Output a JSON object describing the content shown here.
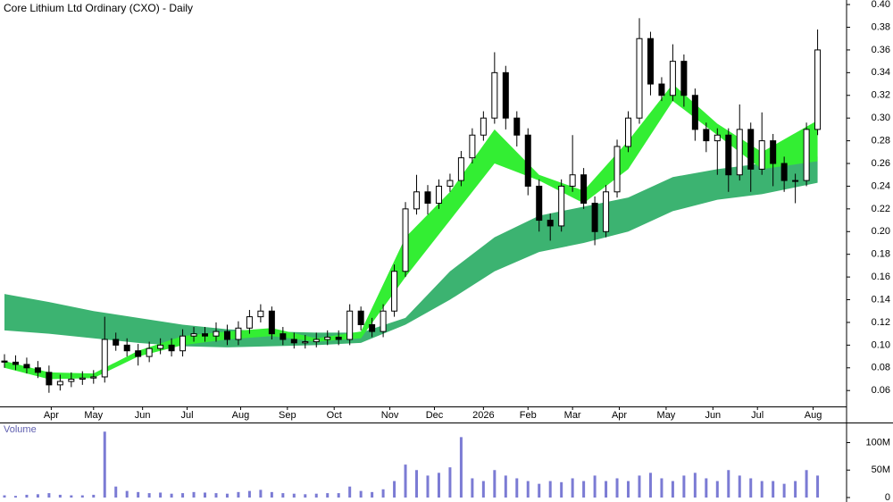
{
  "chart_data": {
    "type": "candlestick",
    "title": "Core Lithium Ltd Ordinary (CXO) - Daily",
    "x": [
      2,
      7,
      12,
      17,
      22,
      27,
      32,
      37,
      42,
      47,
      52,
      57,
      62,
      67,
      72,
      77,
      82,
      87,
      92,
      97,
      102,
      107,
      112,
      117,
      122,
      127,
      132,
      137,
      142,
      147,
      152,
      157,
      162,
      167,
      172,
      177,
      182,
      187,
      192,
      197,
      202,
      207,
      212,
      217,
      222,
      227,
      232,
      237,
      242,
      247,
      252,
      257,
      262,
      267,
      272,
      277,
      282,
      287,
      292,
      297,
      302,
      307,
      312,
      317,
      322,
      327,
      332,
      337,
      342,
      347,
      352,
      357,
      362,
      367
    ],
    "open": [
      0.086,
      0.085,
      0.083,
      0.08,
      0.076,
      0.065,
      0.068,
      0.07,
      0.071,
      0.072,
      0.105,
      0.1,
      0.095,
      0.09,
      0.097,
      0.1,
      0.095,
      0.108,
      0.11,
      0.108,
      0.112,
      0.105,
      0.115,
      0.125,
      0.13,
      0.11,
      0.105,
      0.102,
      0.103,
      0.105,
      0.107,
      0.105,
      0.13,
      0.118,
      0.112,
      0.13,
      0.165,
      0.22,
      0.235,
      0.225,
      0.24,
      0.245,
      0.265,
      0.285,
      0.3,
      0.34,
      0.3,
      0.285,
      0.24,
      0.21,
      0.205,
      0.24,
      0.25,
      0.225,
      0.2,
      0.235,
      0.275,
      0.3,
      0.37,
      0.33,
      0.32,
      0.35,
      0.32,
      0.29,
      0.28,
      0.285,
      0.25,
      0.29,
      0.255,
      0.28,
      0.26,
      0.245,
      0.245,
      0.29
    ],
    "high": [
      0.092,
      0.091,
      0.089,
      0.086,
      0.082,
      0.074,
      0.076,
      0.077,
      0.078,
      0.125,
      0.111,
      0.106,
      0.101,
      0.103,
      0.106,
      0.106,
      0.114,
      0.116,
      0.116,
      0.12,
      0.118,
      0.121,
      0.131,
      0.136,
      0.134,
      0.116,
      0.111,
      0.109,
      0.111,
      0.113,
      0.113,
      0.136,
      0.134,
      0.124,
      0.136,
      0.171,
      0.226,
      0.25,
      0.241,
      0.246,
      0.251,
      0.271,
      0.291,
      0.306,
      0.358,
      0.346,
      0.306,
      0.291,
      0.246,
      0.216,
      0.246,
      0.285,
      0.256,
      0.231,
      0.241,
      0.281,
      0.306,
      0.388,
      0.376,
      0.336,
      0.365,
      0.356,
      0.326,
      0.296,
      0.291,
      0.291,
      0.312,
      0.296,
      0.305,
      0.286,
      0.266,
      0.251,
      0.296,
      0.378
    ],
    "low": [
      0.08,
      0.078,
      0.075,
      0.071,
      0.058,
      0.06,
      0.063,
      0.065,
      0.066,
      0.067,
      0.095,
      0.09,
      0.082,
      0.085,
      0.092,
      0.09,
      0.09,
      0.103,
      0.103,
      0.103,
      0.1,
      0.1,
      0.11,
      0.12,
      0.105,
      0.1,
      0.097,
      0.097,
      0.098,
      0.1,
      0.1,
      0.1,
      0.113,
      0.107,
      0.107,
      0.125,
      0.16,
      0.215,
      0.215,
      0.22,
      0.235,
      0.24,
      0.26,
      0.28,
      0.295,
      0.29,
      0.275,
      0.232,
      0.2,
      0.192,
      0.2,
      0.235,
      0.22,
      0.188,
      0.195,
      0.23,
      0.27,
      0.295,
      0.32,
      0.315,
      0.315,
      0.31,
      0.28,
      0.27,
      0.25,
      0.235,
      0.245,
      0.235,
      0.25,
      0.24,
      0.235,
      0.225,
      0.24,
      0.285
    ],
    "close": [
      0.085,
      0.083,
      0.08,
      0.076,
      0.065,
      0.068,
      0.07,
      0.071,
      0.072,
      0.105,
      0.1,
      0.095,
      0.09,
      0.097,
      0.1,
      0.095,
      0.108,
      0.11,
      0.108,
      0.112,
      0.105,
      0.115,
      0.125,
      0.13,
      0.11,
      0.105,
      0.102,
      0.103,
      0.105,
      0.107,
      0.105,
      0.13,
      0.118,
      0.112,
      0.13,
      0.165,
      0.22,
      0.235,
      0.225,
      0.24,
      0.245,
      0.265,
      0.285,
      0.3,
      0.34,
      0.3,
      0.285,
      0.24,
      0.21,
      0.205,
      0.24,
      0.25,
      0.225,
      0.2,
      0.235,
      0.275,
      0.3,
      0.37,
      0.33,
      0.32,
      0.35,
      0.32,
      0.29,
      0.28,
      0.285,
      0.25,
      0.29,
      0.255,
      0.28,
      0.26,
      0.245,
      0.245,
      0.29,
      0.36
    ],
    "bands": [
      {
        "color": "#3cb371",
        "x": [
          2,
          22,
          42,
          62,
          82,
          102,
          122,
          142,
          162,
          182,
          202,
          222,
          242,
          262,
          282,
          302,
          322,
          342,
          367
        ],
        "upper": [
          0.145,
          0.138,
          0.13,
          0.124,
          0.118,
          0.114,
          0.112,
          0.111,
          0.111,
          0.124,
          0.165,
          0.195,
          0.214,
          0.222,
          0.23,
          0.248,
          0.255,
          0.26,
          0.266
        ],
        "lower": [
          0.113,
          0.11,
          0.106,
          0.102,
          0.099,
          0.098,
          0.099,
          0.1,
          0.102,
          0.118,
          0.14,
          0.165,
          0.182,
          0.19,
          0.2,
          0.218,
          0.228,
          0.233,
          0.243
        ]
      },
      {
        "color": "#33ee33",
        "x": [
          2,
          22,
          42,
          62,
          82,
          102,
          122,
          142,
          162,
          182,
          202,
          222,
          242,
          262,
          282,
          302,
          322,
          342,
          367
        ],
        "upper": [
          0.086,
          0.076,
          0.075,
          0.095,
          0.108,
          0.112,
          0.115,
          0.106,
          0.112,
          0.195,
          0.235,
          0.29,
          0.25,
          0.236,
          0.28,
          0.33,
          0.295,
          0.27,
          0.298
        ],
        "lower": [
          0.08,
          0.07,
          0.071,
          0.09,
          0.1,
          0.105,
          0.108,
          0.103,
          0.106,
          0.16,
          0.21,
          0.26,
          0.245,
          0.225,
          0.255,
          0.315,
          0.285,
          0.255,
          0.262
        ]
      }
    ],
    "xlim": [
      0,
      380
    ],
    "xticks": [
      {
        "value": 23,
        "label": "Apr"
      },
      {
        "value": 42,
        "label": "May"
      },
      {
        "value": 64,
        "label": "Jun"
      },
      {
        "value": 84,
        "label": "Jul"
      },
      {
        "value": 108,
        "label": "Aug"
      },
      {
        "value": 129,
        "label": "Sep"
      },
      {
        "value": 150,
        "label": "Oct"
      },
      {
        "value": 175,
        "label": "Nov"
      },
      {
        "value": 195,
        "label": "Dec"
      },
      {
        "value": 217,
        "label": "2026"
      },
      {
        "value": 237,
        "label": "Feb"
      },
      {
        "value": 257,
        "label": "Mar"
      },
      {
        "value": 278,
        "label": "Apr"
      },
      {
        "value": 299,
        "label": "May"
      },
      {
        "value": 320,
        "label": "Jun"
      },
      {
        "value": 340,
        "label": "Jul"
      },
      {
        "value": 365,
        "label": "Aug"
      }
    ],
    "ylim": [
      0.046,
      0.404
    ],
    "yticks": [
      0.06,
      0.08,
      {
        "value": 0.1,
        "label": "0.10"
      },
      0.12,
      0.14,
      0.16,
      0.18,
      {
        "value": 0.2,
        "label": "0.20"
      },
      0.22,
      0.24,
      0.26,
      0.28,
      {
        "value": 0.3,
        "label": "0.30"
      },
      0.32,
      0.34,
      0.36,
      0.38,
      {
        "value": 0.4,
        "label": "0.40"
      }
    ],
    "volume": {
      "label": "Volume",
      "color": "#7b7bd4",
      "values": [
        4000000,
        3000000,
        5000000,
        6000000,
        8000000,
        5000000,
        4000000,
        4000000,
        5000000,
        120000000,
        20000000,
        12000000,
        10000000,
        8000000,
        9000000,
        7000000,
        8000000,
        10000000,
        9000000,
        8000000,
        7000000,
        10000000,
        12000000,
        14000000,
        10000000,
        8000000,
        7000000,
        6000000,
        7000000,
        8000000,
        8000000,
        20000000,
        12000000,
        10000000,
        15000000,
        30000000,
        60000000,
        50000000,
        40000000,
        45000000,
        55000000,
        110000000,
        35000000,
        30000000,
        50000000,
        40000000,
        35000000,
        30000000,
        25000000,
        30000000,
        28000000,
        35000000,
        30000000,
        40000000,
        30000000,
        35000000,
        30000000,
        40000000,
        45000000,
        35000000,
        30000000,
        40000000,
        45000000,
        35000000,
        30000000,
        50000000,
        40000000,
        35000000,
        30000000,
        30000000,
        25000000,
        30000000,
        50000000,
        40000000
      ],
      "ylim": [
        0,
        135000000
      ],
      "yticks": [
        0,
        {
          "value": 50000000,
          "label": "50M"
        },
        {
          "value": 100000000,
          "label": "100M"
        }
      ]
    }
  }
}
